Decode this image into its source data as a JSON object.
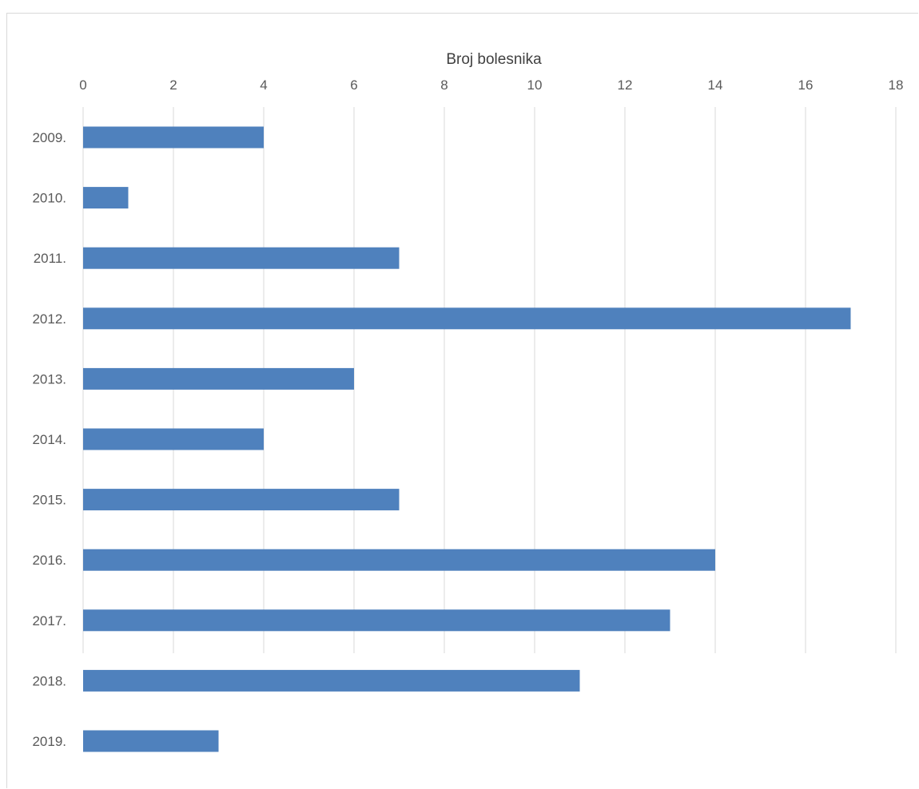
{
  "chart_data": {
    "type": "bar",
    "orientation": "horizontal",
    "xlabel": "Broj bolesnika",
    "xlim": [
      0,
      18
    ],
    "xticks": [
      0,
      2,
      4,
      6,
      8,
      10,
      12,
      14,
      16,
      18
    ],
    "x_axis_position": "top",
    "grid": true,
    "categories": [
      "2009.",
      "2010.",
      "2011.",
      "2012.",
      "2013.",
      "2014.",
      "2015.",
      "2016.",
      "2017.",
      "2018.",
      "2019."
    ],
    "values": [
      4,
      1,
      7,
      17,
      6,
      4,
      7,
      14,
      13,
      11,
      3
    ],
    "colors": {
      "bar": "#4f81bd",
      "grid": "#d9d9d9",
      "text": "#595959"
    }
  }
}
